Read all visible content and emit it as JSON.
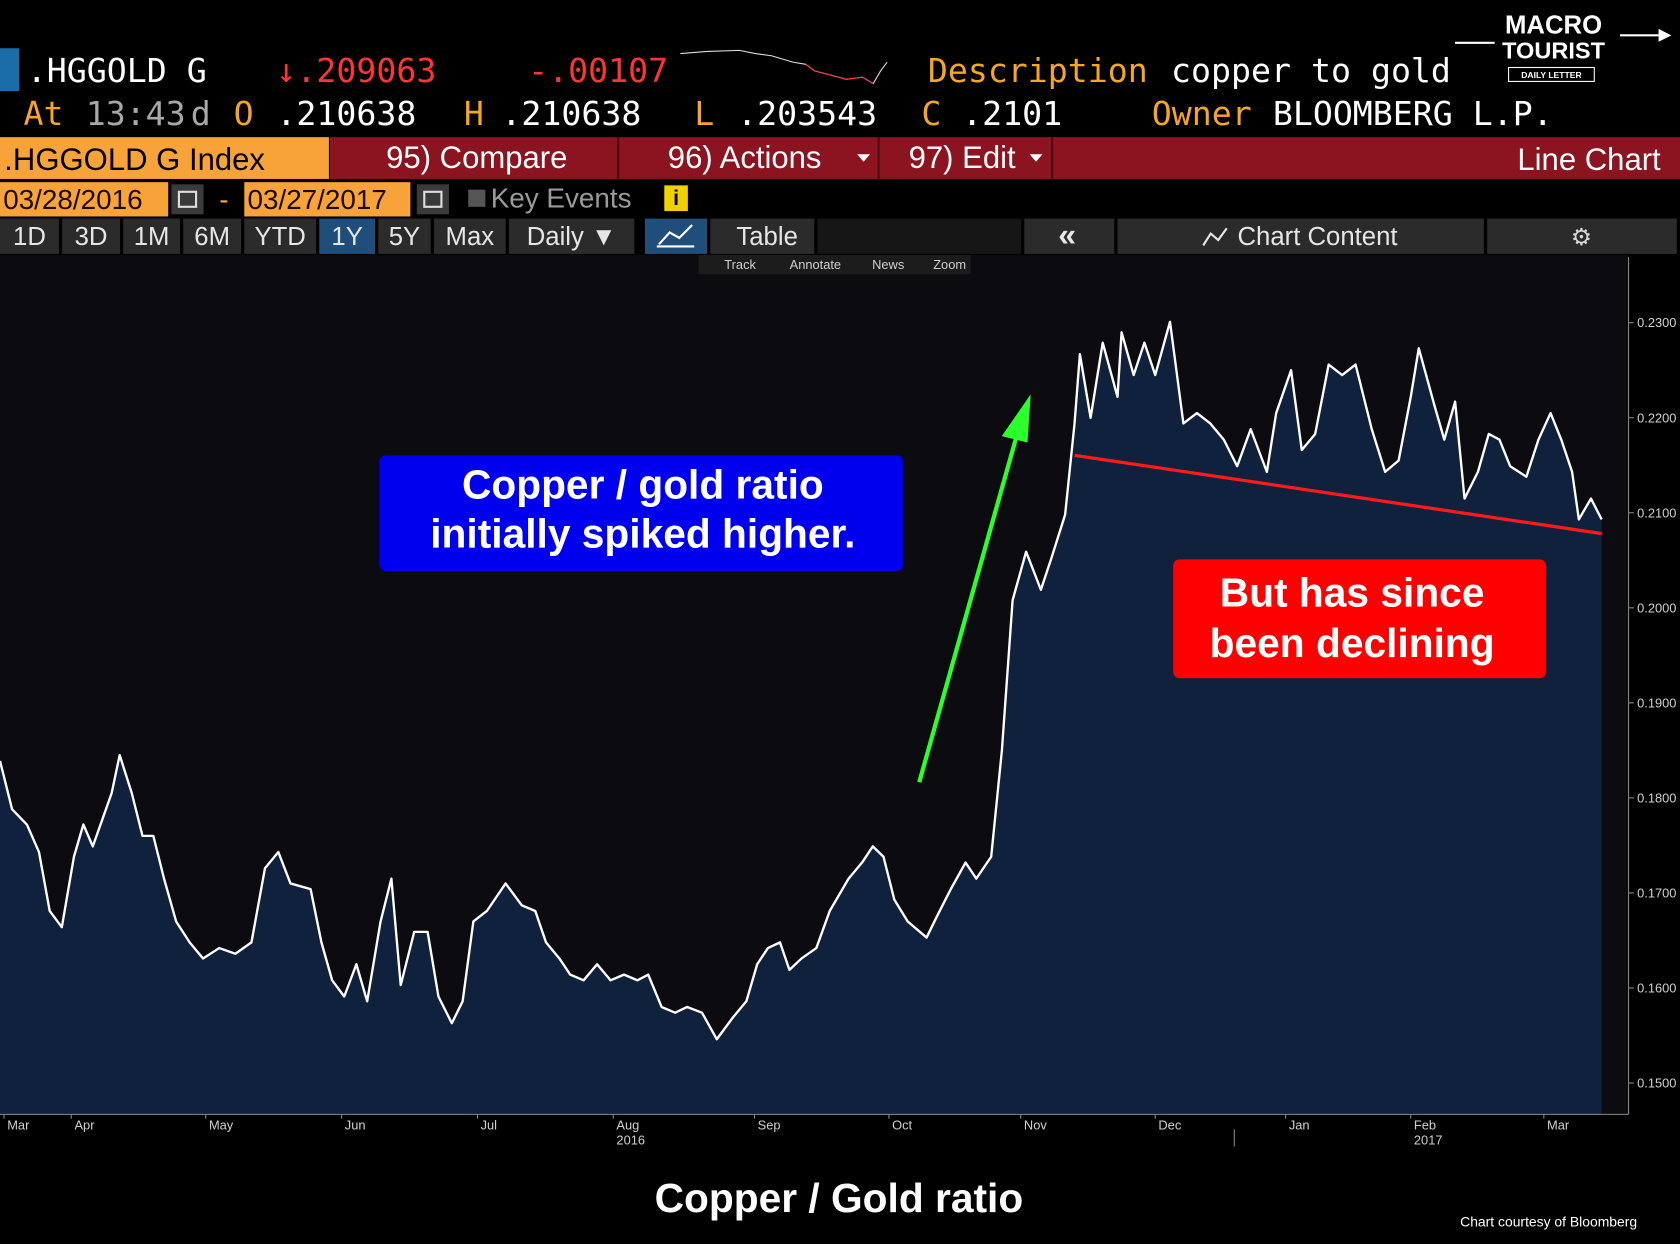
{
  "ui": {
    "header": {
      "ticker": ".HGGOLD G",
      "last": "↓.209063",
      "change": "-.00107",
      "description_label": "Description",
      "description": "copper to gold",
      "at_label": "At",
      "time": "13:43",
      "time_suffix": "d",
      "open_label": "O",
      "open": ".210638",
      "high_label": "H",
      "high": ".210638",
      "low_label": "L",
      "low": ".203543",
      "close_label": "C",
      "close": ".2101",
      "owner_label": "Owner",
      "owner": "BLOOMBERG L.P."
    },
    "logo": [
      "MACRO",
      "TOURIST",
      "DAILY LETTER"
    ],
    "toolbar": {
      "security": ".HGGOLD G Index",
      "compare": "95) Compare",
      "actions": "96) Actions",
      "edit": "97) Edit",
      "chart_kind": "Line Chart"
    },
    "dates": {
      "start": "03/28/2016",
      "separator": "-",
      "end": "03/27/2017",
      "key_events": "Key Events",
      "info": "i"
    },
    "tabs": [
      "1D",
      "3D",
      "1M",
      "6M",
      "YTD",
      "1Y",
      "5Y",
      "Max",
      "Daily ▼"
    ],
    "table": "Table",
    "collapse": "«",
    "chart_content": "Chart Content",
    "settings": "⚙",
    "tools": [
      "Track",
      "Annotate",
      "News",
      "Zoom"
    ]
  },
  "chart_data": {
    "type": "area",
    "title": "Copper / Gold ratio",
    "source": "Chart courtesy of Bloomberg",
    "annotations": [
      [
        "Copper / gold ratio",
        "initially spiked higher."
      ],
      [
        "But has since",
        "been declining"
      ]
    ],
    "color": "#ffffff",
    "fill": "#10213d",
    "x": [
      0.47,
      0.56,
      0.67,
      0.76,
      0.84,
      0.93,
      1.02,
      1.09,
      1.16,
      1.23,
      1.3,
      1.36,
      1.45,
      1.53,
      1.61,
      1.69,
      1.78,
      1.88,
      1.98,
      2.1,
      2.22,
      2.34,
      2.44,
      2.54,
      2.63,
      2.78,
      2.86,
      2.94,
      3.03,
      3.12,
      3.2,
      3.3,
      3.38,
      3.45,
      3.55,
      3.65,
      3.73,
      3.83,
      3.91,
      3.99,
      4.09,
      4.23,
      4.35,
      4.45,
      4.53,
      4.63,
      4.71,
      4.81,
      4.91,
      5.01,
      5.11,
      5.21,
      5.29,
      5.39,
      5.49,
      5.58,
      5.69,
      5.8,
      5.92,
      6.02,
      6.1,
      6.18,
      6.27,
      6.34,
      6.43,
      6.54,
      6.64,
      6.78,
      6.88,
      6.96,
      7.04,
      7.12,
      7.22,
      7.36,
      7.44,
      7.54,
      7.65,
      7.73,
      7.84,
      7.92,
      8.0,
      8.1,
      8.21,
      8.29,
      8.39,
      8.46,
      8.5,
      8.58,
      8.67,
      8.78,
      8.81,
      8.9,
      8.98,
      9.06,
      9.17,
      9.27,
      9.37,
      9.47,
      9.57,
      9.67,
      9.77,
      9.89,
      9.96,
      10.07,
      10.15,
      10.25,
      10.35,
      10.45,
      10.55,
      10.67,
      10.77,
      10.87,
      10.96,
      11.02,
      11.14,
      11.21,
      11.29,
      11.36,
      11.46,
      11.54,
      11.62,
      11.7,
      11.82,
      11.91,
      12.0,
      12.08,
      12.16,
      12.21,
      12.3,
      12.38
    ],
    "values": [
      0.1839,
      0.1788,
      0.1772,
      0.1743,
      0.1681,
      0.1664,
      0.1738,
      0.1772,
      0.1749,
      0.1777,
      0.1805,
      0.1845,
      0.1805,
      0.176,
      0.176,
      0.1715,
      0.167,
      0.1648,
      0.1631,
      0.1642,
      0.1636,
      0.1648,
      0.1726,
      0.1743,
      0.171,
      0.1704,
      0.1648,
      0.1608,
      0.1591,
      0.1625,
      0.1586,
      0.167,
      0.1715,
      0.1603,
      0.1659,
      0.1659,
      0.1591,
      0.1563,
      0.1586,
      0.167,
      0.1681,
      0.171,
      0.1687,
      0.1681,
      0.1648,
      0.1631,
      0.1614,
      0.1608,
      0.1625,
      0.1608,
      0.1614,
      0.1608,
      0.1614,
      0.158,
      0.1574,
      0.158,
      0.1574,
      0.1546,
      0.1569,
      0.1586,
      0.1625,
      0.1642,
      0.1648,
      0.1619,
      0.1631,
      0.1642,
      0.1681,
      0.1715,
      0.1732,
      0.1749,
      0.1738,
      0.1693,
      0.167,
      0.1653,
      0.1676,
      0.1704,
      0.1732,
      0.1715,
      0.1738,
      0.185,
      0.2008,
      0.2059,
      0.2019,
      0.2053,
      0.2098,
      0.2194,
      0.2267,
      0.22,
      0.2279,
      0.2222,
      0.229,
      0.2245,
      0.2279,
      0.2245,
      0.2301,
      0.2194,
      0.2205,
      0.2194,
      0.2177,
      0.2149,
      0.2188,
      0.2143,
      0.2205,
      0.225,
      0.2166,
      0.2183,
      0.2256,
      0.2245,
      0.2256,
      0.2188,
      0.2143,
      0.2155,
      0.2222,
      0.2273,
      0.2211,
      0.2177,
      0.2217,
      0.2115,
      0.2143,
      0.2183,
      0.2177,
      0.2149,
      0.2138,
      0.2177,
      0.2205,
      0.2177,
      0.2143,
      0.2093,
      0.2115,
      0.2093
    ],
    "xlim": [
      0.47,
      12.58
    ],
    "xticks": [
      {
        "value": 0.5,
        "label": "Mar"
      },
      {
        "value": 1.0,
        "label": "Apr"
      },
      {
        "value": 2.0,
        "label": "May"
      },
      {
        "value": 3.01,
        "label": "Jun"
      },
      {
        "value": 4.02,
        "label": "Jul"
      },
      {
        "value": 5.03,
        "label": "Aug"
      },
      {
        "value": 6.08,
        "label": "Sep"
      },
      {
        "value": 7.08,
        "label": "Oct"
      },
      {
        "value": 8.06,
        "label": "Nov"
      },
      {
        "value": 9.06,
        "label": "Dec"
      },
      {
        "value": 10.03,
        "label": "Jan"
      },
      {
        "value": 10.96,
        "label": "Feb"
      },
      {
        "value": 11.95,
        "label": "Mar"
      }
    ],
    "x_year_labels": [
      {
        "value": 5.03,
        "label": "2016"
      },
      {
        "value": 10.96,
        "label": "2017"
      }
    ],
    "ylim": [
      0.1467,
      0.2369
    ],
    "yticks": [
      {
        "value": 0.15,
        "label": "0.1500"
      },
      {
        "value": 0.16,
        "label": "0.1600"
      },
      {
        "value": 0.17,
        "label": "0.1700"
      },
      {
        "value": 0.18,
        "label": "0.1800"
      },
      {
        "value": 0.19,
        "label": "0.1900"
      },
      {
        "value": 0.2,
        "label": "0.2000"
      },
      {
        "value": 0.21,
        "label": "0.2100"
      },
      {
        "value": 0.22,
        "label": "0.2200"
      },
      {
        "value": 0.23,
        "label": "0.2300"
      }
    ],
    "y_axis_side": "right",
    "grid": false
  }
}
